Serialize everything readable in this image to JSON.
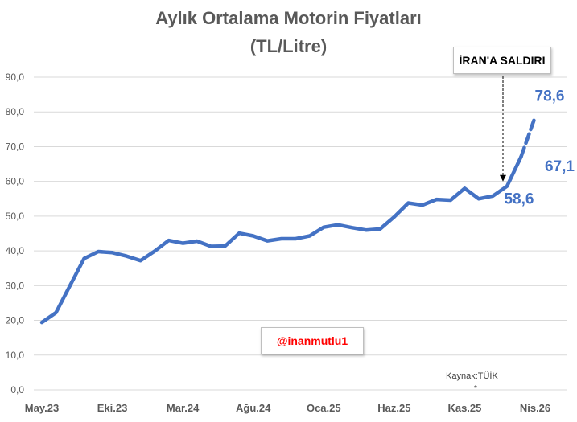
{
  "chart_data": {
    "type": "line",
    "title": "Aylık Ortalama Motorin Fiyatları",
    "subtitle": "(TL/Litre)",
    "xlabel": "",
    "ylabel": "",
    "ylim": [
      0,
      90
    ],
    "yticks": [
      "0,0",
      "10,0",
      "20,0",
      "30,0",
      "40,0",
      "50,0",
      "60,0",
      "70,0",
      "80,0",
      "90,0"
    ],
    "xtick_labels": [
      "May.23",
      "Eki.23",
      "Mar.24",
      "Ağu.24",
      "Oca.25",
      "Haz.25",
      "Kas.25",
      "Nis.26"
    ],
    "grid": true,
    "legend": "none",
    "color": "#4472C4",
    "series": [
      {
        "values": [
          19.4,
          22.2,
          30.0,
          37.8,
          39.8,
          39.5,
          38.5,
          37.2,
          39.9,
          43.0,
          42.2,
          42.8,
          41.3,
          41.4,
          45.1,
          44.3,
          42.9,
          43.5,
          43.5,
          44.3,
          46.8,
          47.5,
          46.7,
          46.0,
          46.3,
          49.8,
          53.8,
          53.2,
          54.8,
          54.6,
          58.0,
          55.0,
          55.8,
          58.6,
          67.1,
          78.6
        ]
      }
    ],
    "forecast_from_index": 34,
    "data_labels": [
      {
        "index": 33,
        "text": "58,6"
      },
      {
        "index": 34,
        "text": "67,1"
      },
      {
        "index": 35,
        "text": "78,6"
      }
    ]
  },
  "annotations": {
    "event_label": "İRAN'A SALDIRI",
    "handle": "@inanmutlu1",
    "source": "Kaynak:TÜİK",
    "footnote_mark": "*"
  }
}
